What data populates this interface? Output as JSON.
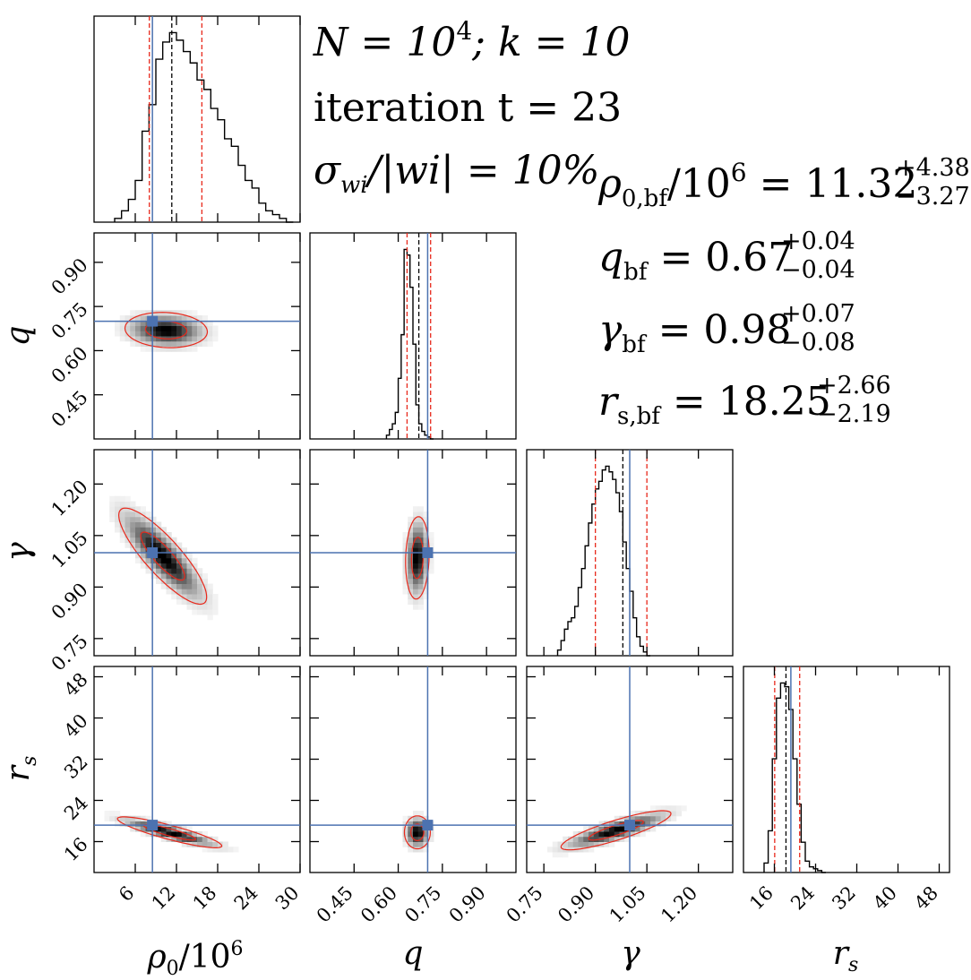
{
  "title_lines": [
    {
      "main": "N = 10",
      "sup": "4",
      "rest": "; k = 10"
    },
    {
      "main": "iteration t = 23"
    },
    {
      "main": "σ",
      "sub": "wi",
      "rest": "/|wi| = 10%"
    }
  ],
  "summary": [
    {
      "sym": "ρ",
      "sub": "0,bf",
      "mid": "/10",
      "mid_sup": "6",
      "eq": " = 11.32",
      "plus": "+4.38",
      "minus": "−3.27"
    },
    {
      "sym": "q",
      "sub": "bf",
      "eq": " = 0.67",
      "plus": "+0.04",
      "minus": "−0.04"
    },
    {
      "sym": "γ",
      "sub": "bf",
      "eq": " = 0.98",
      "plus": "+0.07",
      "minus": "−0.08"
    },
    {
      "sym": "r",
      "sub": "s,bf",
      "eq": " = 18.25",
      "plus": "+2.66",
      "minus": "−2.19"
    }
  ],
  "axis_labels": {
    "x": [
      {
        "sym": "ρ",
        "sub": "0",
        "rest": "/10",
        "sup": "6"
      },
      {
        "sym": "q"
      },
      {
        "sym": "γ"
      },
      {
        "sym": "r",
        "sub": "s"
      }
    ],
    "y": [
      {
        "sym": "q"
      },
      {
        "sym": "γ"
      },
      {
        "sym": "r",
        "sub": "s"
      }
    ]
  },
  "colors": {
    "truth": "#4c72b0",
    "quantile": "#e8291c",
    "median": "#000000",
    "contour": "#e8291c"
  },
  "chart_data": {
    "type": "heatmap",
    "parameters": [
      "ρ0/10^6",
      "q",
      "γ",
      "r_s"
    ],
    "ranges": [
      [
        0,
        30
      ],
      [
        0.3,
        1.0
      ],
      [
        0.7,
        1.3
      ],
      [
        10,
        50
      ]
    ],
    "ticks": [
      [
        6,
        12,
        18,
        24,
        30
      ],
      [
        0.45,
        0.6,
        0.75,
        0.9
      ],
      [
        0.75,
        0.9,
        1.05,
        1.2
      ],
      [
        16,
        24,
        32,
        40,
        48
      ]
    ],
    "tick_labels": [
      [
        "6",
        "12",
        "18",
        "24",
        "30"
      ],
      [
        "0.45",
        "0.60",
        "0.75",
        "0.90"
      ],
      [
        "0.75",
        "0.90",
        "1.05",
        "1.20"
      ],
      [
        "16",
        "24",
        "32",
        "40",
        "48"
      ]
    ],
    "truth": [
      8.5,
      0.7,
      1.0,
      19.2
    ],
    "quantiles": [
      [
        8.05,
        11.32,
        15.7
      ],
      [
        0.63,
        0.67,
        0.71
      ],
      [
        0.9,
        0.98,
        1.05
      ],
      [
        16.06,
        18.25,
        20.91
      ]
    ],
    "histograms": [
      {
        "param": "ρ0/10^6",
        "edges_start": 3,
        "bin_width": 1,
        "counts": [
          0.02,
          0.06,
          0.12,
          0.22,
          0.48,
          0.62,
          0.86,
          0.95,
          1.0,
          0.96,
          0.9,
          0.84,
          0.75,
          0.7,
          0.6,
          0.54,
          0.44,
          0.4,
          0.3,
          0.22,
          0.18,
          0.1,
          0.06,
          0.04,
          0.02,
          0.0
        ]
      },
      {
        "param": "q",
        "edges_start": 0.56,
        "bin_width": 0.01,
        "counts": [
          0.02,
          0.05,
          0.08,
          0.14,
          0.32,
          0.55,
          1.0,
          0.97,
          0.8,
          0.5,
          0.18,
          0.08,
          0.04,
          0.02,
          0.01,
          0.0
        ]
      },
      {
        "param": "γ",
        "edges_start": 0.79,
        "bin_width": 0.01,
        "counts": [
          0.03,
          0.08,
          0.14,
          0.18,
          0.2,
          0.26,
          0.36,
          0.46,
          0.58,
          0.7,
          0.8,
          0.88,
          0.92,
          0.98,
          1.0,
          0.97,
          0.93,
          0.86,
          0.76,
          0.6,
          0.46,
          0.34,
          0.2,
          0.1,
          0.05,
          0.02,
          0.0
        ]
      },
      {
        "param": "r_s",
        "edges_start": 14,
        "bin_width": 0.8,
        "counts": [
          0.05,
          0.22,
          0.6,
          0.92,
          1.0,
          0.98,
          0.86,
          0.6,
          0.36,
          0.16,
          0.06,
          0.03,
          0.02,
          0.01,
          0.0
        ]
      }
    ],
    "joint_modes": [
      {
        "x": "ρ0/10^6",
        "y": "q",
        "center": [
          10.5,
          0.67
        ],
        "sd": [
          3.0,
          0.03
        ],
        "rho": -0.1
      },
      {
        "x": "ρ0/10^6",
        "y": "γ",
        "center": [
          10.0,
          0.99
        ],
        "sd": [
          3.2,
          0.07
        ],
        "rho": -0.85
      },
      {
        "x": "q",
        "y": "γ",
        "center": [
          0.665,
          0.985
        ],
        "sd": [
          0.02,
          0.06
        ],
        "rho": 0.1
      },
      {
        "x": "ρ0/10^6",
        "y": "r_s",
        "center": [
          11.0,
          17.8
        ],
        "sd": [
          3.8,
          1.5
        ],
        "rho": -0.88
      },
      {
        "x": "q",
        "y": "r_s",
        "center": [
          0.665,
          17.8
        ],
        "sd": [
          0.022,
          1.6
        ],
        "rho": 0.0
      },
      {
        "x": "γ",
        "y": "r_s",
        "center": [
          0.96,
          18.2
        ],
        "sd": [
          0.08,
          1.9
        ],
        "rho": 0.85
      }
    ]
  }
}
